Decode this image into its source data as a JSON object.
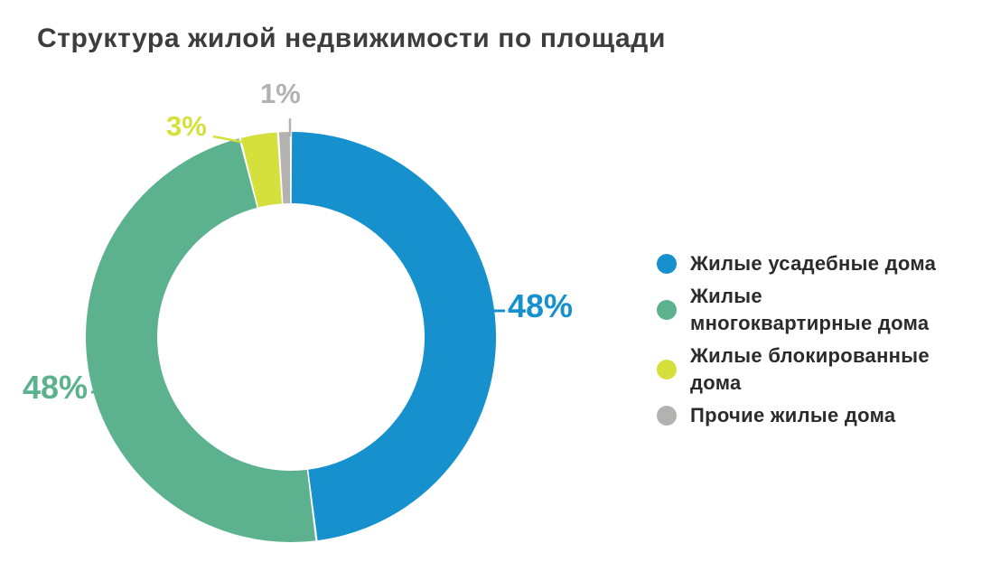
{
  "title": "Структура жилой недвижимости по площади",
  "chart_data": {
    "type": "pie",
    "subtype": "donut",
    "title": "Структура жилой недвижимости по площади",
    "categories": [
      "Жилые усадебные дома",
      "Жилые многоквартирные дома",
      "Жилые блокированные дома",
      "Прочие жилые дома"
    ],
    "values": [
      48,
      48,
      3,
      1
    ],
    "unit": "%",
    "value_labels": {
      "0": "48%",
      "1": "48%",
      "2": "3%",
      "3": "1%"
    },
    "colors": [
      "#1791CE",
      "#5CB28E",
      "#D5E03C",
      "#B3B2B1"
    ],
    "start_angle_deg": 0,
    "direction": "clockwise",
    "inner_radius_ratio": 0.65,
    "legend_position": "right",
    "grid": false
  },
  "legend": {
    "items": [
      {
        "label": "Жилые усадебные дома",
        "display": "Жилые усадебные дома",
        "color": "#1791CE"
      },
      {
        "label": "Жилые многоквартирные дома",
        "display": "Жилые\nмногоквартирные дома",
        "color": "#5CB28E"
      },
      {
        "label": "Жилые блокированные дома",
        "display": "Жилые блокированные\nдома",
        "color": "#D5E03C"
      },
      {
        "label": "Прочие жилые дома",
        "display": "Прочие жилые дома",
        "color": "#B3B2B1"
      }
    ]
  },
  "text_colors": {
    "title": "#3d3d3d",
    "legend": "#2b2b2b"
  }
}
